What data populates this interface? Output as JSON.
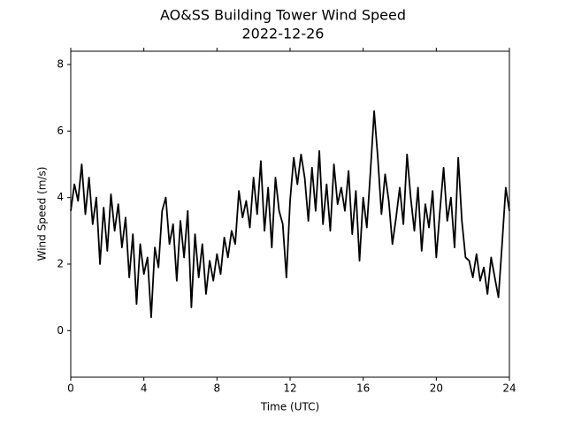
{
  "chart_data": {
    "type": "line",
    "title": "AO&SS Building Tower Wind Speed",
    "subtitle": "2022-12-26",
    "x_label": "Time (UTC)",
    "y_label": "Wind Speed (m/s)",
    "color": "#000000",
    "xlim": [
      0,
      24
    ],
    "xticks": [
      0,
      4,
      8,
      12,
      16,
      20,
      24
    ],
    "ylim": [
      -1.4,
      8.4
    ],
    "yticks": [
      0,
      2,
      4,
      6,
      8
    ],
    "x": [
      0.0,
      0.2,
      0.4,
      0.6,
      0.8,
      1.0,
      1.2,
      1.4,
      1.6,
      1.8,
      2.0,
      2.2,
      2.4,
      2.6,
      2.8,
      3.0,
      3.2,
      3.4,
      3.6,
      3.8,
      4.0,
      4.2,
      4.4,
      4.6,
      4.8,
      5.0,
      5.2,
      5.4,
      5.6,
      5.8,
      6.0,
      6.2,
      6.4,
      6.6,
      6.8,
      7.0,
      7.2,
      7.4,
      7.6,
      7.8,
      8.0,
      8.2,
      8.4,
      8.6,
      8.8,
      9.0,
      9.2,
      9.4,
      9.6,
      9.8,
      10.0,
      10.2,
      10.4,
      10.6,
      10.8,
      11.0,
      11.2,
      11.4,
      11.6,
      11.8,
      12.0,
      12.2,
      12.4,
      12.6,
      12.8,
      13.0,
      13.2,
      13.4,
      13.6,
      13.8,
      14.0,
      14.2,
      14.4,
      14.6,
      14.8,
      15.0,
      15.2,
      15.4,
      15.6,
      15.8,
      16.0,
      16.2,
      16.4,
      16.6,
      16.8,
      17.0,
      17.2,
      17.4,
      17.6,
      17.8,
      18.0,
      18.2,
      18.4,
      18.6,
      18.8,
      19.0,
      19.2,
      19.4,
      19.6,
      19.8,
      20.0,
      20.2,
      20.4,
      20.6,
      20.8,
      21.0,
      21.2,
      21.4,
      21.6,
      21.8,
      22.0,
      22.2,
      22.4,
      22.6,
      22.8,
      23.0,
      23.2,
      23.4,
      23.6,
      23.8,
      24.0
    ],
    "values": [
      3.6,
      4.4,
      3.9,
      5.0,
      3.5,
      4.6,
      3.2,
      4.0,
      2.0,
      3.7,
      2.4,
      4.1,
      3.0,
      3.8,
      2.5,
      3.4,
      1.6,
      2.9,
      0.8,
      2.6,
      1.7,
      2.2,
      0.4,
      2.5,
      1.9,
      3.6,
      4.0,
      2.6,
      3.2,
      1.5,
      3.3,
      2.2,
      3.6,
      0.7,
      2.9,
      1.6,
      2.6,
      1.1,
      2.1,
      1.5,
      2.3,
      1.7,
      2.8,
      2.2,
      3.0,
      2.6,
      4.2,
      3.4,
      3.9,
      3.1,
      4.6,
      3.5,
      5.1,
      3.0,
      4.3,
      2.5,
      4.6,
      3.6,
      3.2,
      1.6,
      3.9,
      5.2,
      4.4,
      5.3,
      4.6,
      3.3,
      4.9,
      3.6,
      5.4,
      3.2,
      4.4,
      3.0,
      5.0,
      3.8,
      4.3,
      3.6,
      4.8,
      2.9,
      4.2,
      2.1,
      4.0,
      3.1,
      4.8,
      6.6,
      5.2,
      3.5,
      4.7,
      3.9,
      2.6,
      3.4,
      4.3,
      3.2,
      5.3,
      4.0,
      3.0,
      4.3,
      2.4,
      3.8,
      3.1,
      4.2,
      2.2,
      3.6,
      4.9,
      3.3,
      4.0,
      2.5,
      5.2,
      3.3,
      2.2,
      2.1,
      1.6,
      2.3,
      1.5,
      1.9,
      1.1,
      2.2,
      1.6,
      1.0,
      2.6,
      4.3,
      3.6
    ]
  }
}
